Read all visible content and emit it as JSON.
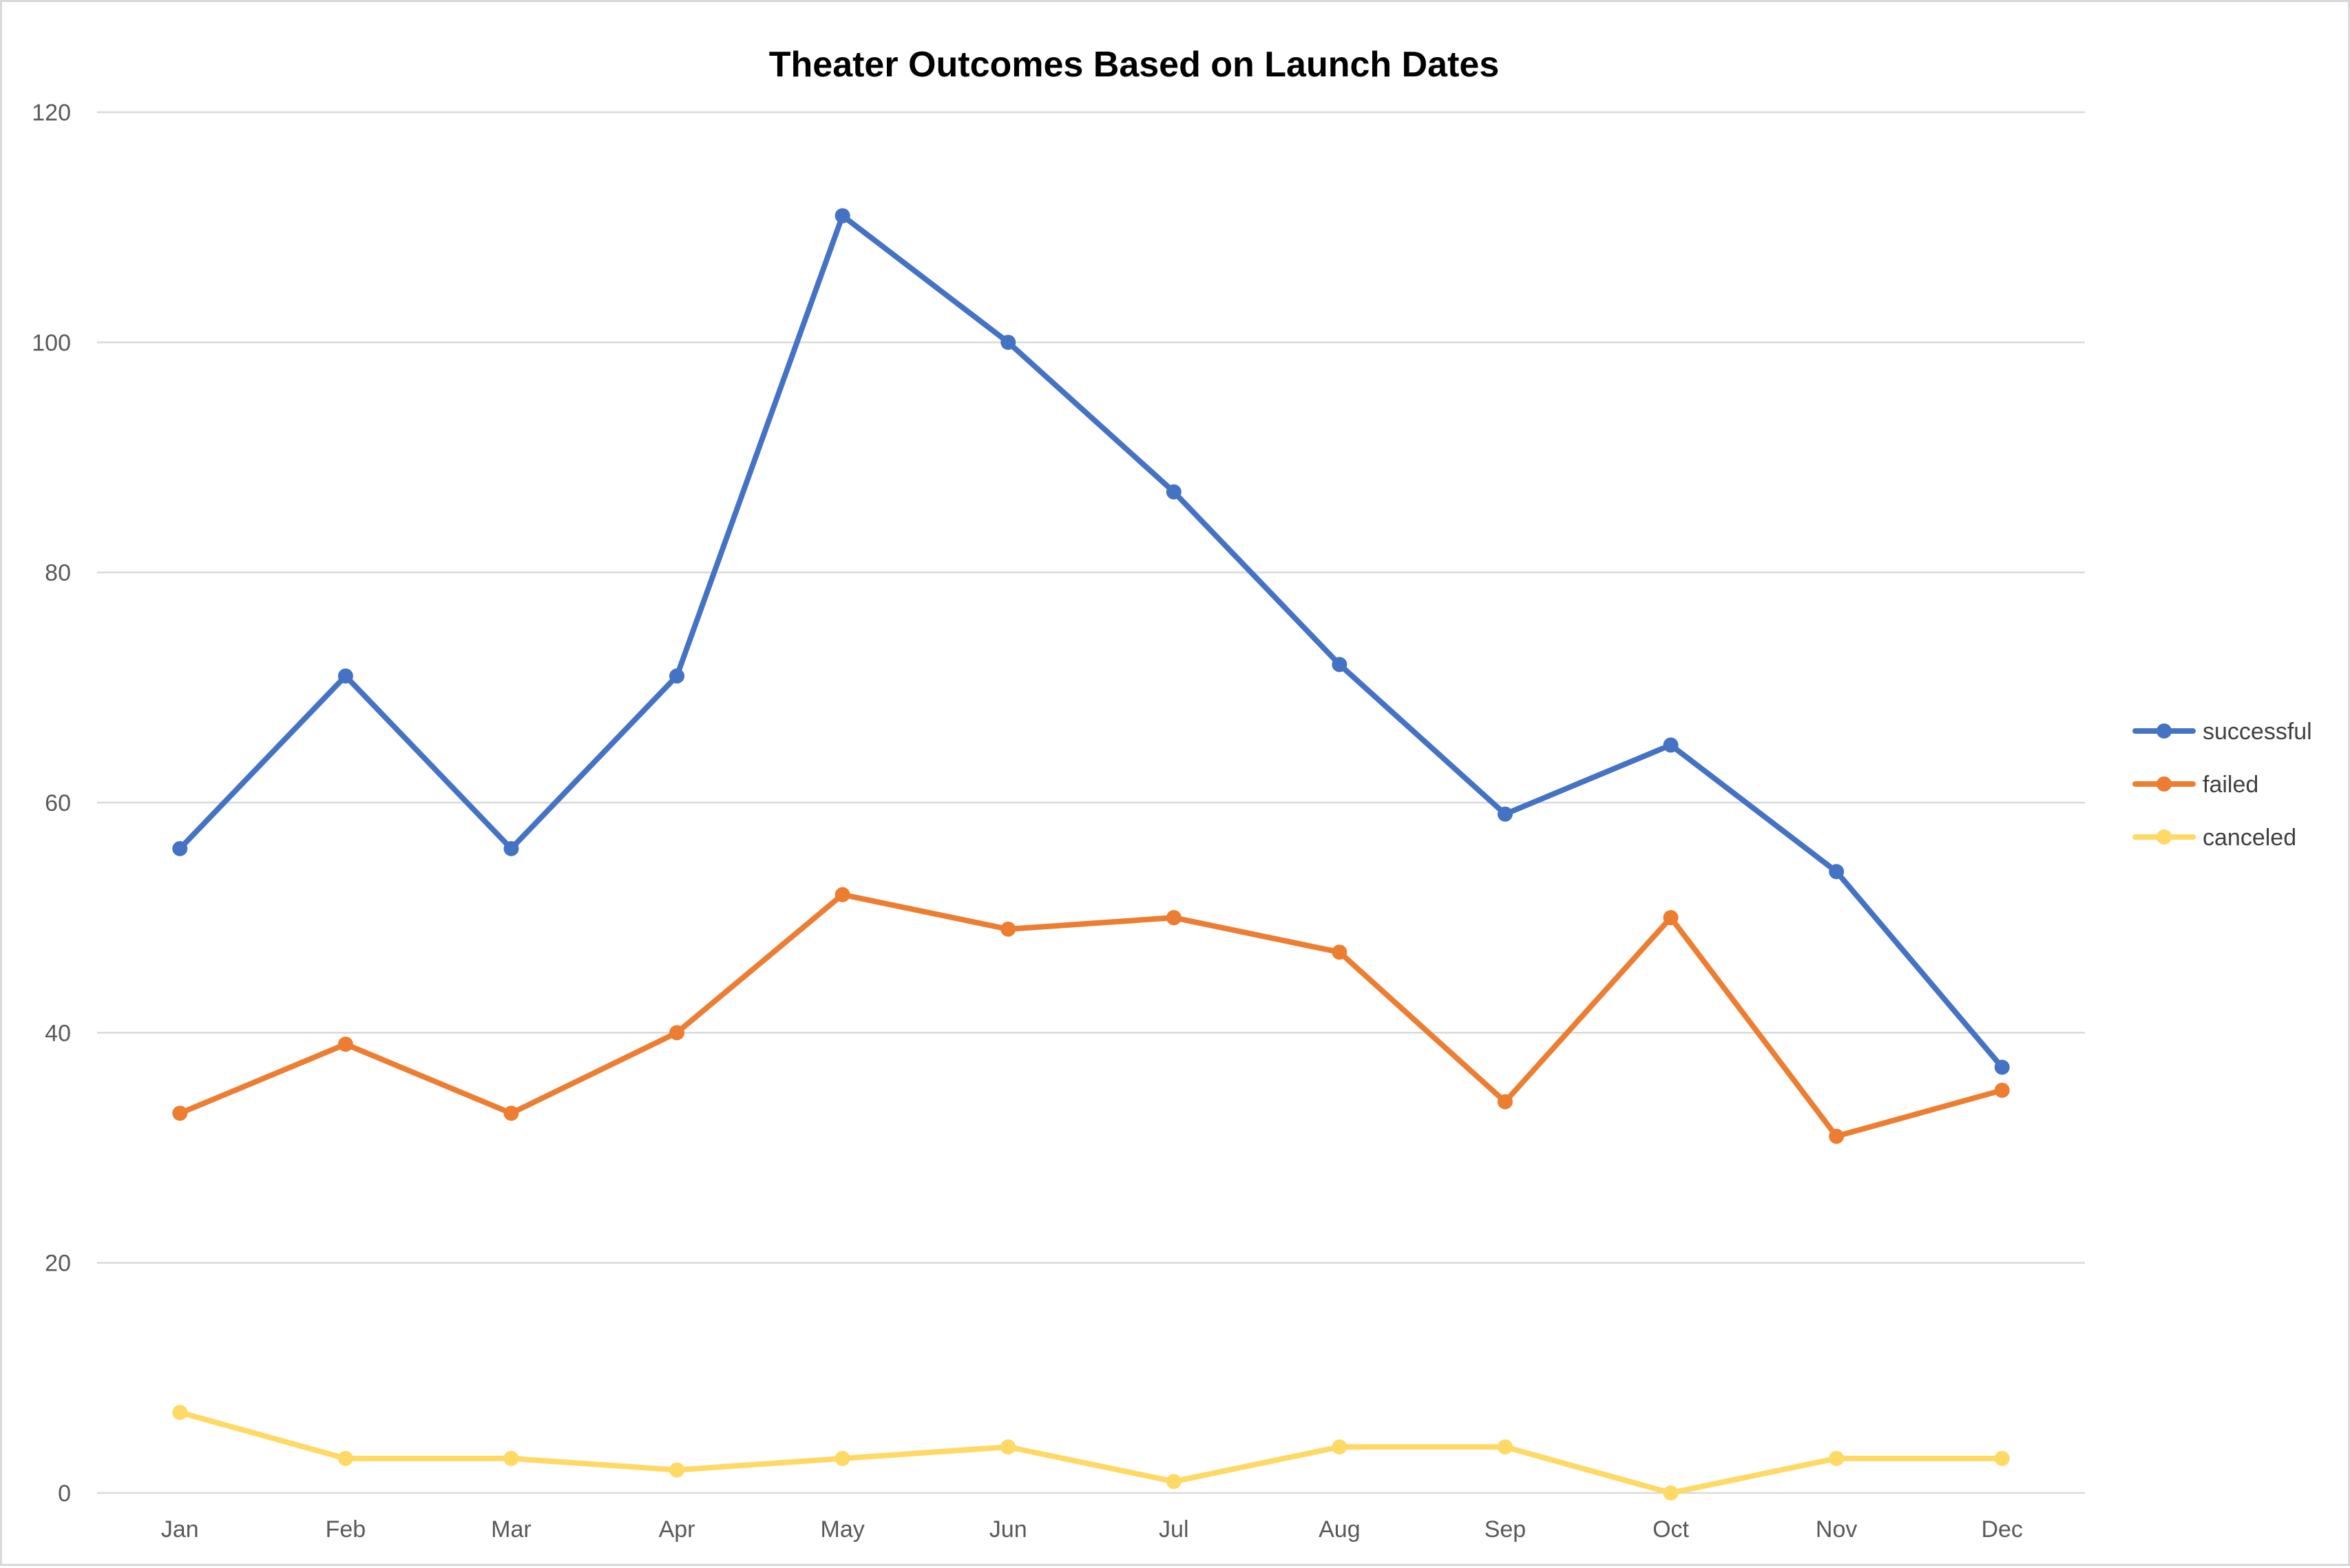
{
  "chart_data": {
    "type": "line",
    "title": "Theater Outcomes Based on Launch Dates",
    "xlabel": "",
    "ylabel": "",
    "categories": [
      "Jan",
      "Feb",
      "Mar",
      "Apr",
      "May",
      "Jun",
      "Jul",
      "Aug",
      "Sep",
      "Oct",
      "Nov",
      "Dec"
    ],
    "ylim": [
      0,
      120
    ],
    "yticks": [
      0,
      20,
      40,
      60,
      80,
      100,
      120
    ],
    "grid": true,
    "legend_position": "right",
    "markers": "circle",
    "series": [
      {
        "name": "successful",
        "color": "#4472c4",
        "values": [
          56,
          71,
          56,
          71,
          111,
          100,
          87,
          72,
          59,
          65,
          54,
          37
        ]
      },
      {
        "name": "failed",
        "color": "#ed7d31",
        "values": [
          33,
          39,
          33,
          40,
          52,
          49,
          50,
          47,
          34,
          50,
          31,
          35
        ]
      },
      {
        "name": "canceled",
        "color": "#ffd966",
        "values": [
          7,
          3,
          3,
          2,
          3,
          4,
          1,
          4,
          4,
          0,
          3,
          3
        ]
      }
    ]
  }
}
